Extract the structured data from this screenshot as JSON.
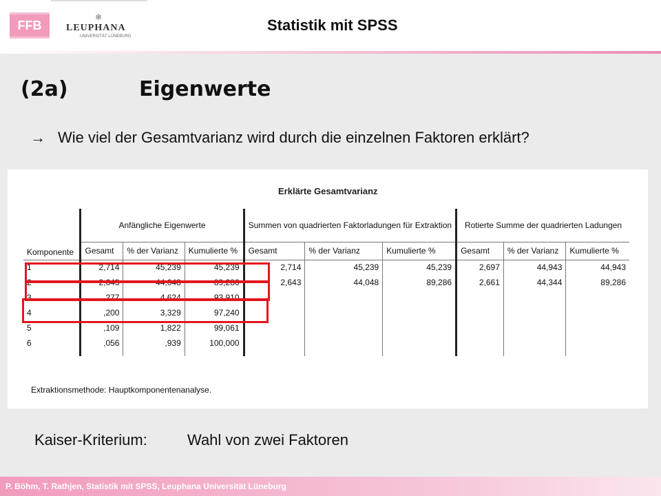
{
  "header": {
    "ffb_logo_text": "FFB",
    "leuphana_logo_text": "LEUPHANA",
    "leuphana_logo_subtext": "UNIVERSITÄT LÜNEBURG",
    "course_title": "Statistik mit SPSS"
  },
  "slide": {
    "number": "(2a)",
    "heading": "Eigenwerte",
    "arrow": "→",
    "question": "Wie viel der Gesamtvarianz wird durch die einzelnen Faktoren erklärt?"
  },
  "table": {
    "title": "Erklärte Gesamtvarianz",
    "col_component": "Komponente",
    "groups": [
      "Anfängliche Eigenwerte",
      "Summen von quadrierten Faktorladungen für Extraktion",
      "Rotierte Summe der quadrierten Ladungen"
    ],
    "subcols": [
      "Gesamt",
      "% der Varianz",
      "Kumulierte %"
    ],
    "rows": [
      {
        "k": "1",
        "init": [
          "2,714",
          "45,239",
          "45,239"
        ],
        "extr": [
          "2,714",
          "45,239",
          "45,239"
        ],
        "rot": [
          "2,697",
          "44,943",
          "44,943"
        ]
      },
      {
        "k": "2",
        "init": [
          "2,643",
          "44,048",
          "89,286"
        ],
        "extr": [
          "2,643",
          "44,048",
          "89,286"
        ],
        "rot": [
          "2,661",
          "44,344",
          "89,286"
        ]
      },
      {
        "k": "3",
        "init": [
          ",277",
          "4,624",
          "93,910"
        ],
        "extr": [
          "",
          "",
          ""
        ],
        "rot": [
          "",
          "",
          ""
        ]
      },
      {
        "k": "4",
        "init": [
          ",200",
          "3,329",
          "97,240"
        ],
        "extr": [
          "",
          "",
          ""
        ],
        "rot": [
          "",
          "",
          ""
        ]
      },
      {
        "k": "5",
        "init": [
          ",109",
          "1,822",
          "99,061"
        ],
        "extr": [
          "",
          "",
          ""
        ],
        "rot": [
          "",
          "",
          ""
        ]
      },
      {
        "k": "6",
        "init": [
          ",056",
          ",939",
          "100,000"
        ],
        "extr": [
          "",
          "",
          ""
        ],
        "rot": [
          "",
          "",
          ""
        ]
      }
    ],
    "note": "Extraktionsmethode: Hauptkomponentenanalyse.",
    "highlighted_components": [
      "1",
      "2",
      "3"
    ],
    "highlight_color": "#e3151c"
  },
  "kaiser": {
    "label": "Kaiser-Kriterium:",
    "value": "Wahl von zwei Faktoren"
  },
  "footer": {
    "text": "P. Böhm, T. Rathjen, Statistik mit SPSS, Leuphana Universität Lüneburg"
  },
  "colors": {
    "brand_pink": "#f29bbd",
    "slide_background": "#ebebeb"
  }
}
